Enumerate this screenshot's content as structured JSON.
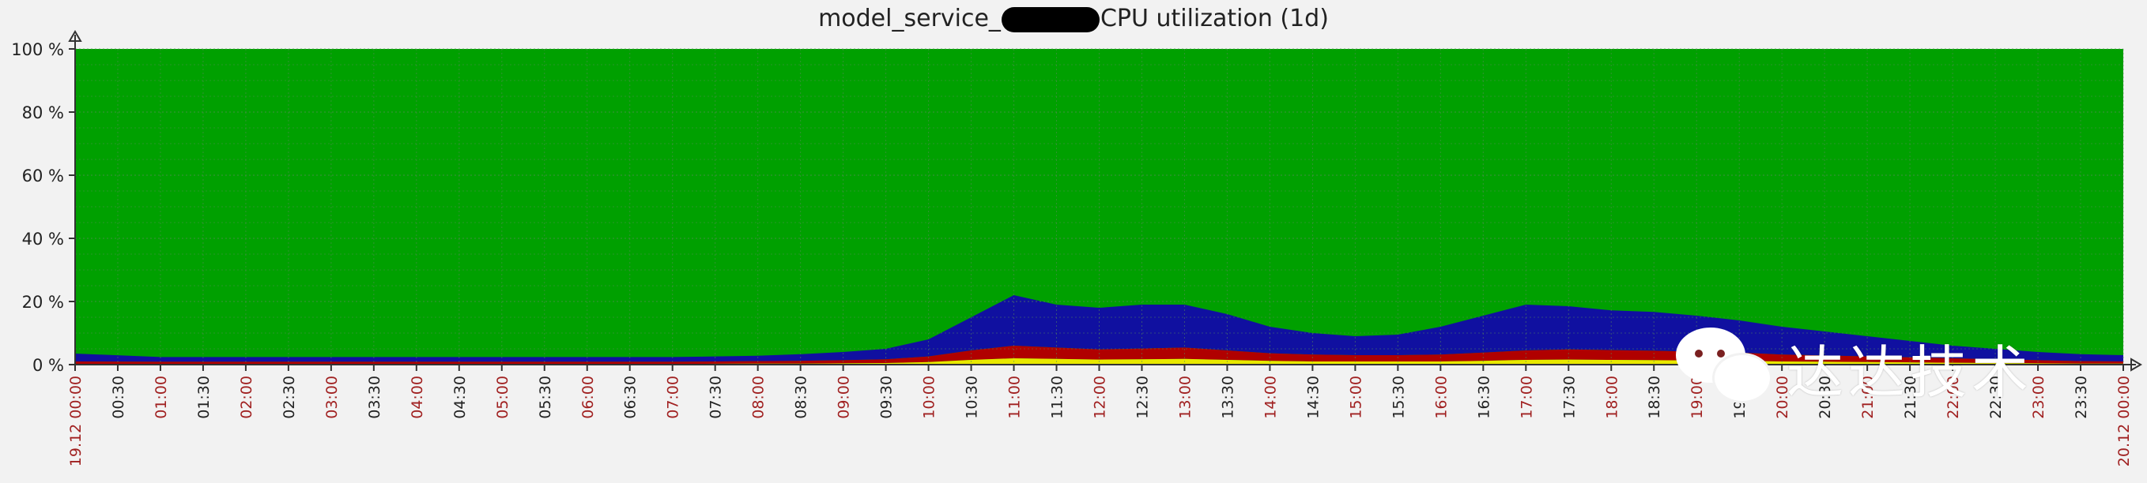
{
  "chart_data": {
    "type": "area",
    "title_left": "model_service_",
    "title_right": "CPU utilization (1d)",
    "ylim": [
      0,
      100
    ],
    "y_ticks": [
      0,
      20,
      40,
      60,
      80,
      100
    ],
    "y_tick_labels": [
      "0 %",
      "20 %",
      "40 %",
      "60 %",
      "80 %",
      "100 %"
    ],
    "x_tick_labels": [
      "19.12 00:00",
      "00:30",
      "01:00",
      "01:30",
      "02:00",
      "02:30",
      "03:00",
      "03:30",
      "04:00",
      "04:30",
      "05:00",
      "05:30",
      "06:00",
      "06:30",
      "07:00",
      "07:30",
      "08:00",
      "08:30",
      "09:00",
      "09:30",
      "10:00",
      "10:30",
      "11:00",
      "11:30",
      "12:00",
      "12:30",
      "13:00",
      "13:30",
      "14:00",
      "14:30",
      "15:00",
      "15:30",
      "16:00",
      "16:30",
      "17:00",
      "17:30",
      "18:00",
      "18:30",
      "19:00",
      "19:30",
      "20:00",
      "20:30",
      "21:00",
      "21:30",
      "22:00",
      "22:30",
      "23:00",
      "23:30",
      "20.12 00:00"
    ],
    "x_hours": [
      0,
      1,
      2,
      3,
      4,
      5,
      6,
      7,
      8,
      8.5,
      9,
      9.5,
      10,
      10.5,
      11,
      11.5,
      12,
      12.5,
      13,
      13.5,
      14,
      14.5,
      15,
      15.5,
      16,
      16.5,
      17,
      17.5,
      18,
      18.5,
      19,
      19.5,
      20,
      20.5,
      21,
      21.5,
      22,
      22.5,
      23,
      23.5,
      24
    ],
    "series": [
      {
        "color": "#e8e800",
        "values": [
          0.2,
          0.2,
          0.2,
          0.2,
          0.2,
          0.2,
          0.2,
          0.2,
          0.3,
          0.3,
          0.4,
          0.5,
          0.8,
          1.5,
          2.0,
          1.8,
          1.6,
          1.7,
          1.8,
          1.5,
          1.2,
          1.0,
          1.0,
          1.0,
          1.0,
          1.2,
          1.5,
          1.6,
          1.5,
          1.4,
          1.3,
          1.2,
          1.0,
          0.9,
          0.8,
          0.7,
          0.6,
          0.5,
          0.4,
          0.3,
          0.3
        ]
      },
      {
        "color": "#b00000",
        "values": [
          0.8,
          0.7,
          0.7,
          0.7,
          0.7,
          0.7,
          0.7,
          0.7,
          0.8,
          0.9,
          1.0,
          1.2,
          1.8,
          3.0,
          4.0,
          3.6,
          3.2,
          3.4,
          3.6,
          3.0,
          2.4,
          2.2,
          2.0,
          2.0,
          2.2,
          2.6,
          3.0,
          3.2,
          3.1,
          3.0,
          2.8,
          2.6,
          2.2,
          2.0,
          1.8,
          1.6,
          1.4,
          1.2,
          1.0,
          0.8,
          0.7
        ]
      },
      {
        "color": "#1010a0",
        "values": [
          2.5,
          1.5,
          1.5,
          1.5,
          1.5,
          1.5,
          1.5,
          1.5,
          1.7,
          2.1,
          2.6,
          3.3,
          5.4,
          10.5,
          16.0,
          13.6,
          13.2,
          13.9,
          13.6,
          11.5,
          8.4,
          6.8,
          6.0,
          6.5,
          8.8,
          11.7,
          14.5,
          13.7,
          12.6,
          12.3,
          11.4,
          10.2,
          8.8,
          7.6,
          6.4,
          5.2,
          4.0,
          3.3,
          2.6,
          2.2,
          2.0
        ]
      },
      {
        "color": "#00a000",
        "fill_to": 100
      }
    ]
  },
  "watermark": {
    "text": "达达技术",
    "icon": "wechat-icon"
  }
}
